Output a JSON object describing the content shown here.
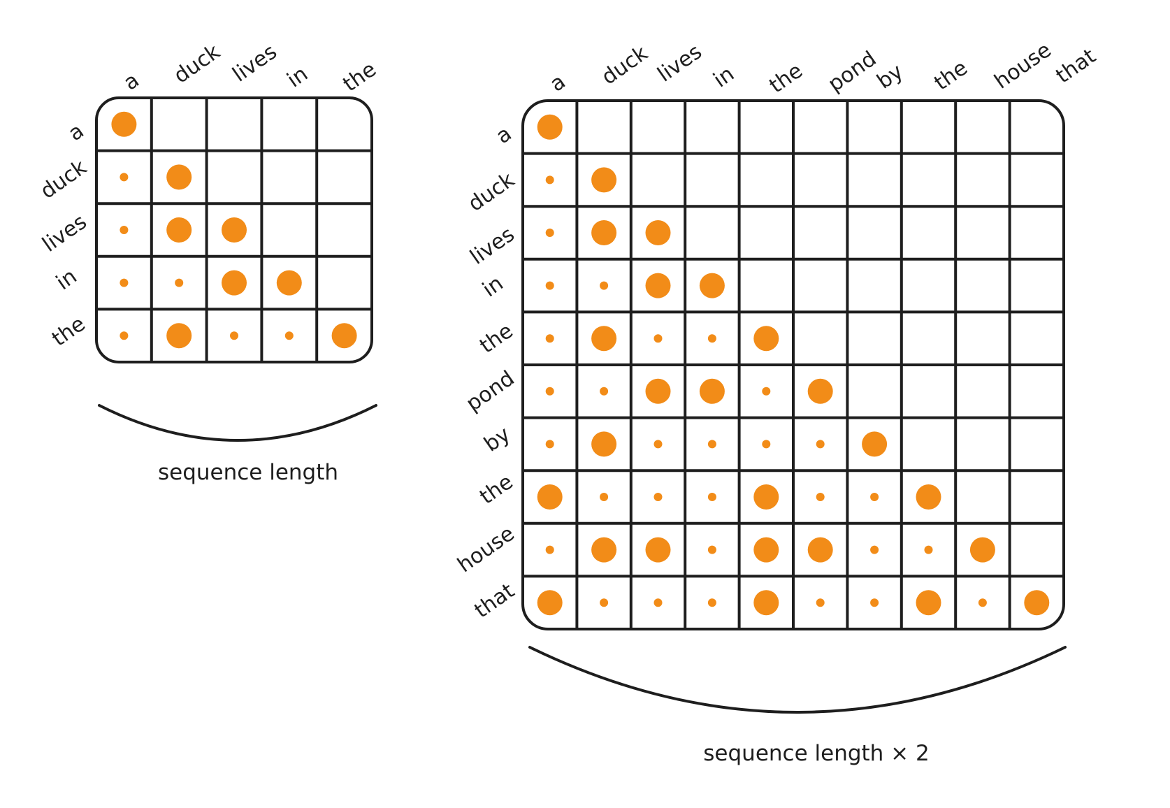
{
  "palette": {
    "ink": "#1e1e1e",
    "dot": "#f28c18",
    "background": "#ffffff"
  },
  "small_matrix": {
    "tokens": [
      "a",
      "duck",
      "lives",
      "in",
      "the"
    ],
    "caption": "sequence length",
    "weights": [
      [
        3,
        0,
        0,
        0,
        0
      ],
      [
        1,
        3,
        0,
        0,
        0
      ],
      [
        1,
        3,
        3,
        0,
        0
      ],
      [
        1,
        1,
        3,
        3,
        0
      ],
      [
        1,
        3,
        1,
        1,
        3
      ]
    ]
  },
  "large_matrix": {
    "tokens": [
      "a",
      "duck",
      "lives",
      "in",
      "the",
      "pond",
      "by",
      "the",
      "house",
      "that"
    ],
    "caption": "sequence length × 2",
    "weights": [
      [
        3,
        0,
        0,
        0,
        0,
        0,
        0,
        0,
        0,
        0
      ],
      [
        1,
        3,
        0,
        0,
        0,
        0,
        0,
        0,
        0,
        0
      ],
      [
        1,
        3,
        3,
        0,
        0,
        0,
        0,
        0,
        0,
        0
      ],
      [
        1,
        1,
        3,
        3,
        0,
        0,
        0,
        0,
        0,
        0
      ],
      [
        1,
        3,
        1,
        1,
        3,
        0,
        0,
        0,
        0,
        0
      ],
      [
        1,
        1,
        3,
        3,
        1,
        3,
        0,
        0,
        0,
        0
      ],
      [
        1,
        3,
        1,
        1,
        1,
        1,
        3,
        0,
        0,
        0
      ],
      [
        3,
        1,
        1,
        1,
        3,
        1,
        1,
        3,
        0,
        0
      ],
      [
        1,
        3,
        3,
        1,
        3,
        3,
        1,
        1,
        3,
        0
      ],
      [
        3,
        1,
        1,
        1,
        3,
        1,
        1,
        3,
        1,
        3
      ]
    ]
  }
}
